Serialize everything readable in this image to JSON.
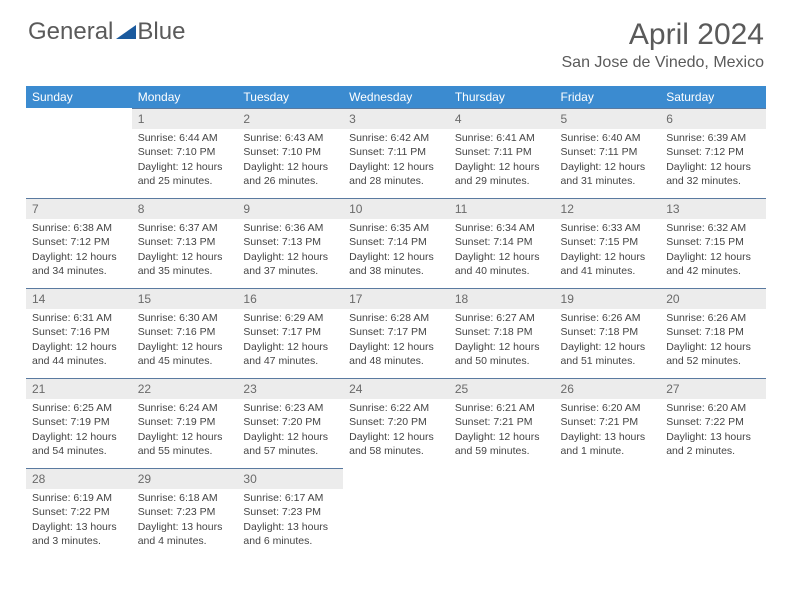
{
  "logo": {
    "text1": "General",
    "text2": "Blue",
    "triangle_color": "#1a5a9e"
  },
  "title": "April 2024",
  "location": "San Jose de Vinedo, Mexico",
  "header_bg": "#3b8bd0",
  "daynum_bg": "#ececec",
  "border_color": "#5a7aa0",
  "day_headers": [
    "Sunday",
    "Monday",
    "Tuesday",
    "Wednesday",
    "Thursday",
    "Friday",
    "Saturday"
  ],
  "weeks": [
    [
      null,
      {
        "n": "1",
        "sr": "6:44 AM",
        "ss": "7:10 PM",
        "dl": "12 hours and 25 minutes."
      },
      {
        "n": "2",
        "sr": "6:43 AM",
        "ss": "7:10 PM",
        "dl": "12 hours and 26 minutes."
      },
      {
        "n": "3",
        "sr": "6:42 AM",
        "ss": "7:11 PM",
        "dl": "12 hours and 28 minutes."
      },
      {
        "n": "4",
        "sr": "6:41 AM",
        "ss": "7:11 PM",
        "dl": "12 hours and 29 minutes."
      },
      {
        "n": "5",
        "sr": "6:40 AM",
        "ss": "7:11 PM",
        "dl": "12 hours and 31 minutes."
      },
      {
        "n": "6",
        "sr": "6:39 AM",
        "ss": "7:12 PM",
        "dl": "12 hours and 32 minutes."
      }
    ],
    [
      {
        "n": "7",
        "sr": "6:38 AM",
        "ss": "7:12 PM",
        "dl": "12 hours and 34 minutes."
      },
      {
        "n": "8",
        "sr": "6:37 AM",
        "ss": "7:13 PM",
        "dl": "12 hours and 35 minutes."
      },
      {
        "n": "9",
        "sr": "6:36 AM",
        "ss": "7:13 PM",
        "dl": "12 hours and 37 minutes."
      },
      {
        "n": "10",
        "sr": "6:35 AM",
        "ss": "7:14 PM",
        "dl": "12 hours and 38 minutes."
      },
      {
        "n": "11",
        "sr": "6:34 AM",
        "ss": "7:14 PM",
        "dl": "12 hours and 40 minutes."
      },
      {
        "n": "12",
        "sr": "6:33 AM",
        "ss": "7:15 PM",
        "dl": "12 hours and 41 minutes."
      },
      {
        "n": "13",
        "sr": "6:32 AM",
        "ss": "7:15 PM",
        "dl": "12 hours and 42 minutes."
      }
    ],
    [
      {
        "n": "14",
        "sr": "6:31 AM",
        "ss": "7:16 PM",
        "dl": "12 hours and 44 minutes."
      },
      {
        "n": "15",
        "sr": "6:30 AM",
        "ss": "7:16 PM",
        "dl": "12 hours and 45 minutes."
      },
      {
        "n": "16",
        "sr": "6:29 AM",
        "ss": "7:17 PM",
        "dl": "12 hours and 47 minutes."
      },
      {
        "n": "17",
        "sr": "6:28 AM",
        "ss": "7:17 PM",
        "dl": "12 hours and 48 minutes."
      },
      {
        "n": "18",
        "sr": "6:27 AM",
        "ss": "7:18 PM",
        "dl": "12 hours and 50 minutes."
      },
      {
        "n": "19",
        "sr": "6:26 AM",
        "ss": "7:18 PM",
        "dl": "12 hours and 51 minutes."
      },
      {
        "n": "20",
        "sr": "6:26 AM",
        "ss": "7:18 PM",
        "dl": "12 hours and 52 minutes."
      }
    ],
    [
      {
        "n": "21",
        "sr": "6:25 AM",
        "ss": "7:19 PM",
        "dl": "12 hours and 54 minutes."
      },
      {
        "n": "22",
        "sr": "6:24 AM",
        "ss": "7:19 PM",
        "dl": "12 hours and 55 minutes."
      },
      {
        "n": "23",
        "sr": "6:23 AM",
        "ss": "7:20 PM",
        "dl": "12 hours and 57 minutes."
      },
      {
        "n": "24",
        "sr": "6:22 AM",
        "ss": "7:20 PM",
        "dl": "12 hours and 58 minutes."
      },
      {
        "n": "25",
        "sr": "6:21 AM",
        "ss": "7:21 PM",
        "dl": "12 hours and 59 minutes."
      },
      {
        "n": "26",
        "sr": "6:20 AM",
        "ss": "7:21 PM",
        "dl": "13 hours and 1 minute."
      },
      {
        "n": "27",
        "sr": "6:20 AM",
        "ss": "7:22 PM",
        "dl": "13 hours and 2 minutes."
      }
    ],
    [
      {
        "n": "28",
        "sr": "6:19 AM",
        "ss": "7:22 PM",
        "dl": "13 hours and 3 minutes."
      },
      {
        "n": "29",
        "sr": "6:18 AM",
        "ss": "7:23 PM",
        "dl": "13 hours and 4 minutes."
      },
      {
        "n": "30",
        "sr": "6:17 AM",
        "ss": "7:23 PM",
        "dl": "13 hours and 6 minutes."
      },
      null,
      null,
      null,
      null
    ]
  ],
  "labels": {
    "sunrise": "Sunrise:",
    "sunset": "Sunset:",
    "daylight": "Daylight:"
  }
}
